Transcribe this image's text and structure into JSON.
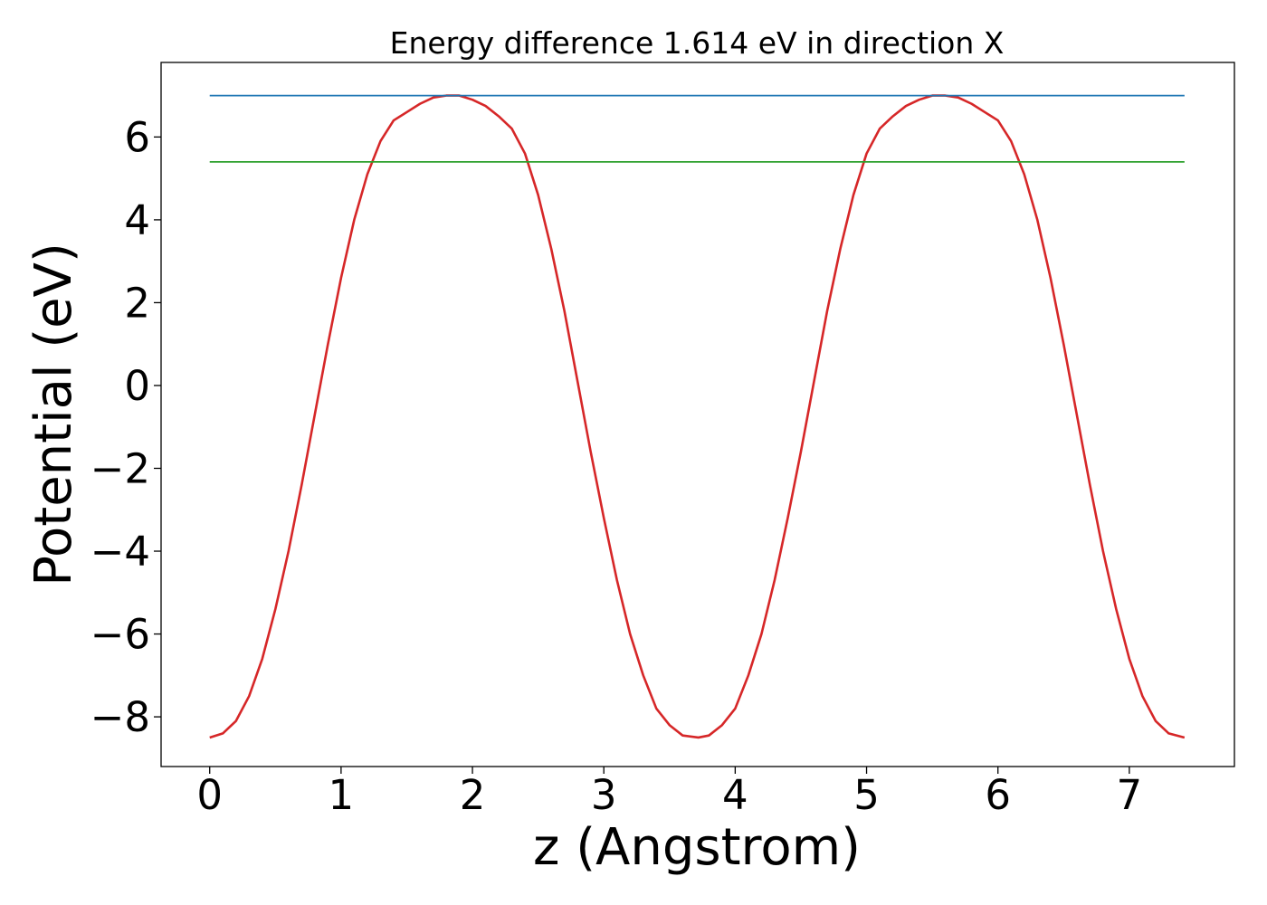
{
  "chart_data": {
    "type": "line",
    "title": "Energy difference 1.614 eV in direction X",
    "xlabel": "z (Angstrom)",
    "ylabel": "Potential (eV)",
    "xlim": [
      -0.37,
      7.8
    ],
    "ylim": [
      -9.2,
      7.8
    ],
    "xticks": [
      0,
      1,
      2,
      3,
      4,
      5,
      6,
      7
    ],
    "xtick_labels": [
      "0",
      "1",
      "2",
      "3",
      "4",
      "5",
      "6",
      "7"
    ],
    "yticks": [
      6,
      4,
      2,
      0,
      -2,
      -4,
      -6,
      -8
    ],
    "ytick_labels": [
      "6",
      "4",
      "2",
      "0",
      "−2",
      "−4",
      "−6",
      "−8"
    ],
    "grid": false,
    "series": [
      {
        "color": "#d62728",
        "x": [
          0,
          0.1,
          0.2,
          0.3,
          0.4,
          0.5,
          0.6,
          0.7,
          0.8,
          0.9,
          1.0,
          1.1,
          1.2,
          1.3,
          1.4,
          1.5,
          1.6,
          1.7,
          1.8,
          1.86,
          1.9,
          2.0,
          2.1,
          2.2,
          2.3,
          2.4,
          2.5,
          2.6,
          2.7,
          2.8,
          2.9,
          3.0,
          3.1,
          3.2,
          3.3,
          3.4,
          3.5,
          3.6,
          3.72,
          3.8,
          3.9,
          4.0,
          4.1,
          4.2,
          4.3,
          4.4,
          4.5,
          4.6,
          4.7,
          4.8,
          4.9,
          5.0,
          5.1,
          5.2,
          5.3,
          5.4,
          5.5,
          5.58,
          5.6,
          5.7,
          5.8,
          5.9,
          6.0,
          6.1,
          6.2,
          6.3,
          6.4,
          6.5,
          6.6,
          6.7,
          6.8,
          6.9,
          7.0,
          7.1,
          7.2,
          7.3,
          7.42
        ],
        "y": [
          -8.5,
          -8.4,
          -8.1,
          -7.5,
          -6.6,
          -5.4,
          -4.0,
          -2.4,
          -0.7,
          1.0,
          2.6,
          4.0,
          5.1,
          5.9,
          6.4,
          6.6,
          6.8,
          6.95,
          7.0,
          7.0,
          7.0,
          6.9,
          6.75,
          6.5,
          6.2,
          5.6,
          4.6,
          3.3,
          1.8,
          0.1,
          -1.6,
          -3.2,
          -4.7,
          -6.0,
          -7.0,
          -7.8,
          -8.2,
          -8.45,
          -8.5,
          -8.45,
          -8.2,
          -7.8,
          -7.0,
          -6.0,
          -4.7,
          -3.2,
          -1.6,
          0.1,
          1.8,
          3.3,
          4.6,
          5.6,
          6.2,
          6.5,
          6.75,
          6.9,
          7.0,
          7.0,
          7.0,
          6.95,
          6.8,
          6.6,
          6.4,
          5.9,
          5.1,
          4.0,
          2.6,
          1.0,
          -0.7,
          -2.4,
          -4.0,
          -5.4,
          -6.6,
          -7.5,
          -8.1,
          -8.4,
          -8.5
        ]
      },
      {
        "color": "#1f77b4",
        "x": [
          0,
          7.42
        ],
        "y": [
          7.0,
          7.0
        ]
      },
      {
        "color": "#2ca02c",
        "x": [
          0,
          7.42
        ],
        "y": [
          5.4,
          5.4
        ]
      }
    ]
  }
}
